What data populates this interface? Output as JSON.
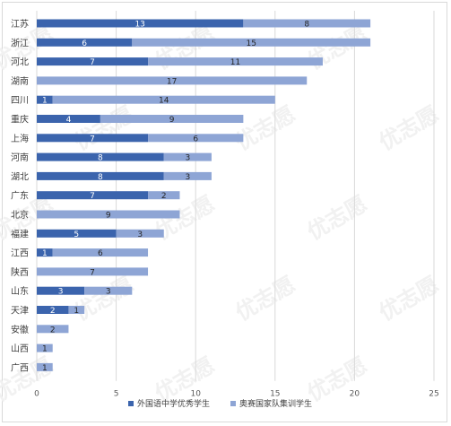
{
  "chart_data": {
    "type": "bar",
    "orientation": "horizontal",
    "stacked": true,
    "categories": [
      "江苏",
      "浙江",
      "河北",
      "湖南",
      "四川",
      "重庆",
      "上海",
      "河南",
      "湖北",
      "广东",
      "北京",
      "福建",
      "江西",
      "陕西",
      "山东",
      "天津",
      "安徽",
      "山西",
      "广西"
    ],
    "series": [
      {
        "name": "外国语中学优秀学生",
        "color": "#3b64ad",
        "values": [
          13,
          6,
          7,
          0,
          1,
          4,
          7,
          8,
          8,
          7,
          0,
          5,
          1,
          0,
          3,
          2,
          0,
          0,
          0
        ]
      },
      {
        "name": "奥赛国家队集训学生",
        "color": "#8ea5d5",
        "values": [
          8,
          15,
          11,
          17,
          14,
          9,
          6,
          3,
          3,
          2,
          9,
          3,
          6,
          7,
          3,
          1,
          2,
          1,
          1
        ]
      }
    ],
    "xlim": [
      0,
      25
    ],
    "xticks": [
      "0",
      "5",
      "10",
      "15",
      "20",
      "25"
    ],
    "grid": "vertical",
    "legend": "bottom",
    "watermark": "优志愿"
  }
}
